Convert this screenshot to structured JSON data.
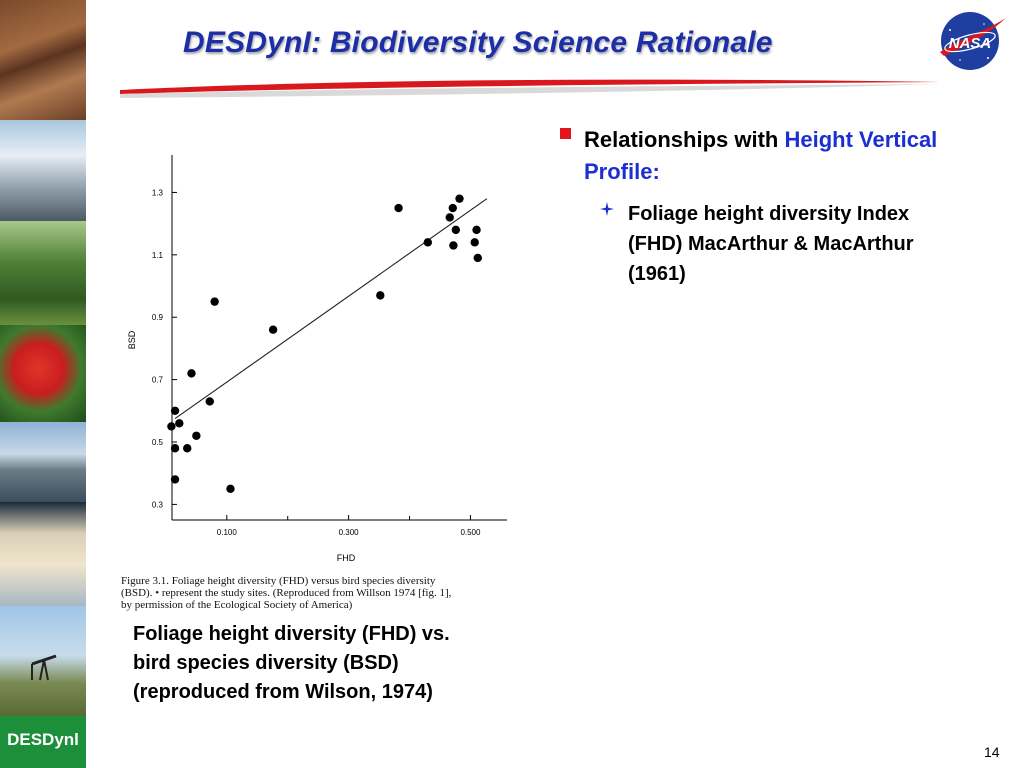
{
  "slide": {
    "title": "DESDynI:  Biodiversity Science Rationale",
    "logo_text": "NASA",
    "brand_label": "DESDynl",
    "page_number": "14",
    "accent_colors": {
      "title": "#1c2fa8",
      "highlight": "#1c2fd0",
      "bullet": "#e3141c",
      "swoosh": "#d9181e"
    }
  },
  "bullets": {
    "main": {
      "lead": "Relationships with ",
      "highlight_line1": "Height Vertical",
      "highlight_line2": "Profile:"
    },
    "sub": [
      "Foliage height diversity Index",
      "(FHD) MacArthur & MacArthur",
      "(1961)"
    ]
  },
  "figure": {
    "caption_line1": "Figure 3.1.   Foliage height diversity (FHD) versus bird species diversity",
    "caption_line2": "(BSD). • represent the study sites. (Reproduced from Willson 1974 [fig. 1],",
    "caption_line3": "by permission of the Ecological Society of America)",
    "subcaption": [
      "Foliage height diversity (FHD) vs.",
      "bird species diversity (BSD)",
      "(reproduced from Wilson, 1974)"
    ]
  },
  "chart_data": {
    "type": "scatter",
    "xlabel": "FHD",
    "ylabel": "BSD",
    "xlim": [
      0.01,
      0.56
    ],
    "ylim": [
      0.25,
      1.42
    ],
    "x_ticks": [
      0.1,
      0.3,
      0.5
    ],
    "x_tick_labels": [
      "0.100",
      "0.300",
      "0.500"
    ],
    "y_ticks": [
      0.3,
      0.5,
      0.7,
      0.9,
      1.1,
      1.3
    ],
    "y_tick_labels": [
      "0.3",
      "0.5",
      "0.7",
      "0.9",
      "1.1",
      "1.3"
    ],
    "grid": false,
    "points": [
      [
        0.009,
        0.55
      ],
      [
        0.015,
        0.6
      ],
      [
        0.022,
        0.56
      ],
      [
        0.015,
        0.48
      ],
      [
        0.015,
        0.38
      ],
      [
        0.035,
        0.48
      ],
      [
        0.042,
        0.72
      ],
      [
        0.05,
        0.52
      ],
      [
        0.072,
        0.63
      ],
      [
        0.08,
        0.95
      ],
      [
        0.106,
        0.35
      ],
      [
        0.176,
        0.86
      ],
      [
        0.352,
        0.97
      ],
      [
        0.382,
        1.25
      ],
      [
        0.43,
        1.14
      ],
      [
        0.466,
        1.22
      ],
      [
        0.471,
        1.25
      ],
      [
        0.482,
        1.28
      ],
      [
        0.476,
        1.18
      ],
      [
        0.472,
        1.13
      ],
      [
        0.51,
        1.18
      ],
      [
        0.507,
        1.14
      ],
      [
        0.512,
        1.09
      ]
    ],
    "trend_line": {
      "x": [
        0.015,
        0.527
      ],
      "y": [
        0.575,
        1.28
      ]
    }
  }
}
